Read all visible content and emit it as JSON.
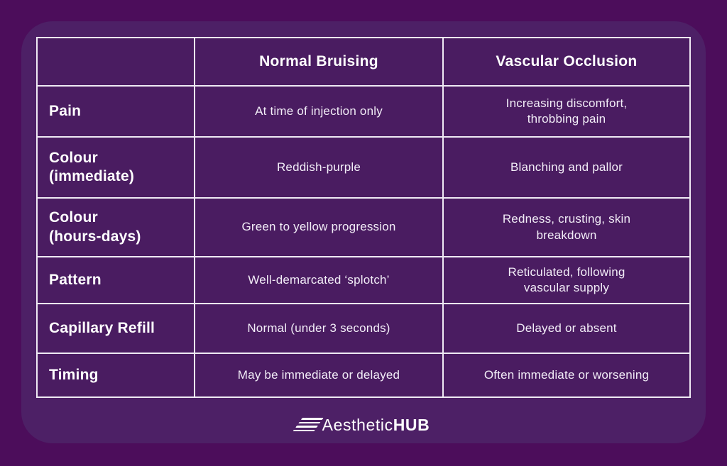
{
  "chart_data": {
    "type": "table",
    "title": "",
    "columns": [
      "",
      "Normal Bruising",
      "Vascular Occlusion"
    ],
    "rows": [
      [
        "Pain",
        "At time of injection only",
        "Increasing discomfort, throbbing pain"
      ],
      [
        "Colour (immediate)",
        "Reddish-purple",
        "Blanching and pallor"
      ],
      [
        "Colour (hours-days)",
        "Green to yellow progression",
        "Redness, crusting, skin breakdown"
      ],
      [
        "Pattern",
        "Well-demarcated ‘splotch’",
        "Reticulated, following vascular supply"
      ],
      [
        "Capillary Refill",
        "Normal (under 3 seconds)",
        "Delayed or absent"
      ],
      [
        "Timing",
        "May be immediate or delayed",
        "Often immediate or worsening"
      ]
    ],
    "legend_position": "none",
    "grid": true
  },
  "table": {
    "columns": [
      "",
      "Normal Bruising",
      "Vascular Occlusion"
    ],
    "rows": [
      {
        "label": "Pain",
        "normal": "At time of injection only",
        "occlusion": "Increasing discomfort,\nthrobbing pain"
      },
      {
        "label": "Colour\n(immediate)",
        "normal": "Reddish-purple",
        "occlusion": "Blanching and pallor"
      },
      {
        "label": "Colour\n(hours-days)",
        "normal": "Green to yellow progression",
        "occlusion": "Redness, crusting, skin\nbreakdown"
      },
      {
        "label": "Pattern",
        "normal": "Well-demarcated ‘splotch’",
        "occlusion": "Reticulated, following\nvascular supply"
      },
      {
        "label": "Capillary Refill",
        "normal": "Normal (under 3 seconds)",
        "occlusion": "Delayed or absent"
      },
      {
        "label": "Timing",
        "normal": "May be immediate or delayed",
        "occlusion": "Often immediate or worsening"
      }
    ]
  },
  "footer": {
    "icon": "triple-lines-icon",
    "brand_light": "Aesthetic",
    "brand_bold": "HUB"
  },
  "colors": {
    "outer_bg": "#4C0D5B",
    "card_bg": "#4D2066",
    "cell_bg": "#4A1C61",
    "border": "#EFEAF4",
    "heading_text": "#FFFFFF",
    "body_text": "#F2EDF7"
  }
}
